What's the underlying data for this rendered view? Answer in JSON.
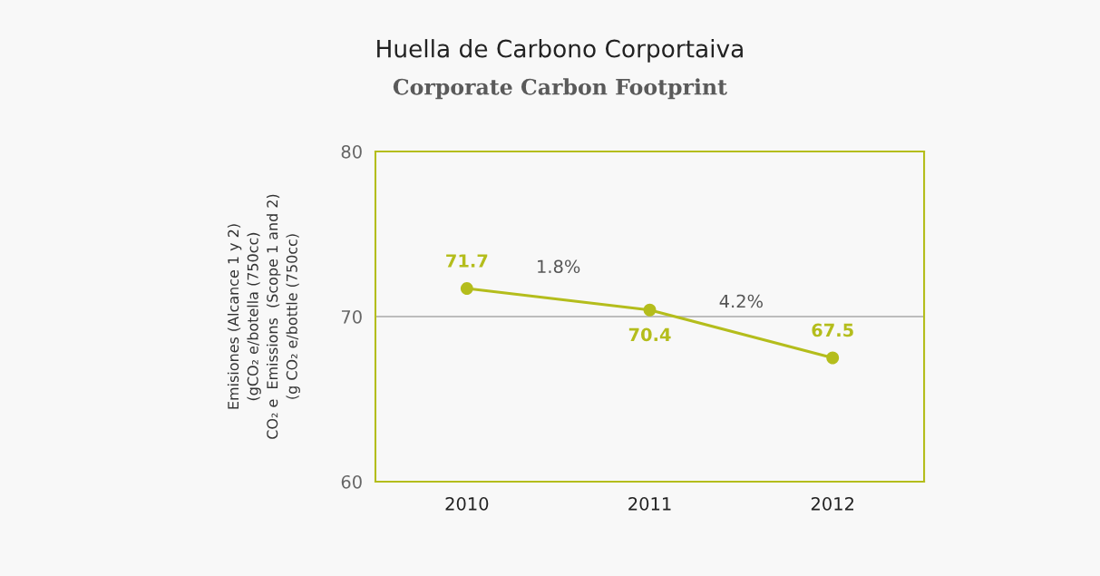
{
  "chart_data": {
    "type": "line",
    "title": "Huella de Carbono Corportaiva",
    "subtitle": "Corporate Carbon Footprint",
    "ylabel": "Emisiones (Alcance 1 y 2)\n(gCO₂ e/botella (750cc)\nCO₂ e  Emissions  (Scope 1 and 2)\n(g CO₂ e/bottle (750cc)",
    "categories": [
      "2010",
      "2011",
      "2012"
    ],
    "series": [
      {
        "color": "#b4bd1c",
        "values": [
          71.7,
          70.4,
          67.5
        ]
      }
    ],
    "ylim": [
      60,
      80
    ],
    "yticks": [
      60,
      70,
      80
    ],
    "grid": "y",
    "marker": "circle",
    "line_style": "solid",
    "data_labels": true,
    "annotations": [
      "1.8%",
      "4.2%"
    ]
  }
}
